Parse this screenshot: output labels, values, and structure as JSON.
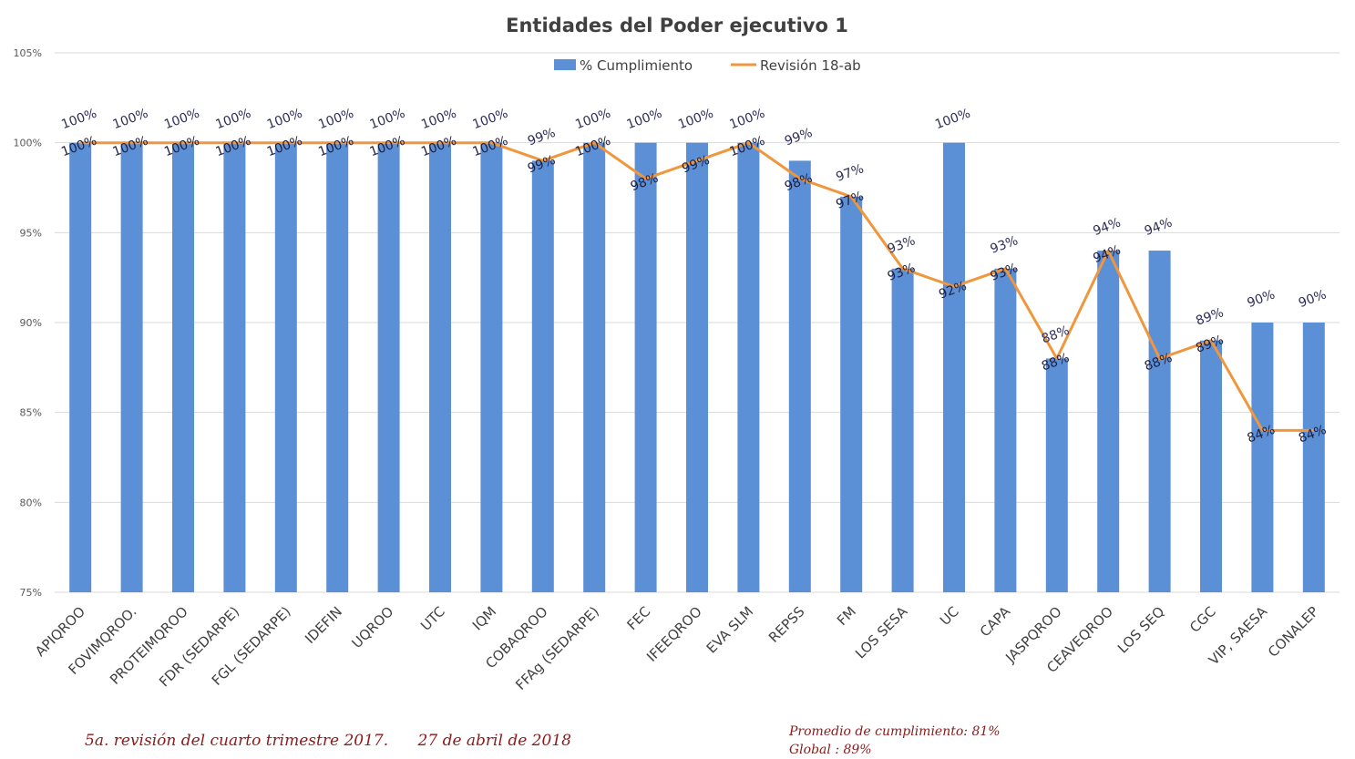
{
  "chart_data": {
    "type": "bar",
    "title": "Entidades del Poder ejecutivo 1",
    "categories": [
      "APIQROO",
      "FOVIMQROO.",
      "PROTEIMQROO",
      "FDR (SEDARPE)",
      "FGL (SEDARPE)",
      "IDEFIN",
      "UQROO",
      "UTC",
      "IQM",
      "COBAQROO",
      "FFAg (SEDARPE)",
      "FEC",
      "IFEEQROO",
      "EVA SLM",
      "REPSS",
      "FM",
      "LOS SESA",
      "UC",
      "CAPA",
      "JASPQROO",
      "CEAVEQROO",
      "LOS SEQ",
      "CGC",
      "VIP, SAESA",
      "CONALEP"
    ],
    "series": [
      {
        "name": "% Cumplimiento",
        "kind": "bar",
        "color": "#5b8fd6",
        "values": [
          100,
          100,
          100,
          100,
          100,
          100,
          100,
          100,
          100,
          99,
          100,
          100,
          100,
          100,
          99,
          97,
          93,
          100,
          93,
          88,
          94,
          94,
          89,
          90,
          90
        ],
        "labels": [
          "100%",
          "100%",
          "100%",
          "100%",
          "100%",
          "100%",
          "100%",
          "100%",
          "100%",
          "99%",
          "100%",
          "100%",
          "100%",
          "100%",
          "99%",
          "97%",
          "93%",
          "100%",
          "93%",
          "88%",
          "94%",
          "94%",
          "89%",
          "90%",
          "90%"
        ]
      },
      {
        "name": "Revisión  18-ab",
        "kind": "line",
        "color": "#f0963c",
        "values": [
          100,
          100,
          100,
          100,
          100,
          100,
          100,
          100,
          100,
          99,
          100,
          98,
          99,
          100,
          98,
          97,
          93,
          92,
          93,
          88,
          94,
          88,
          89,
          84,
          84
        ],
        "labels": [
          "100%",
          "100%",
          "100%",
          "100%",
          "100%",
          "100%",
          "100%",
          "100%",
          "100%",
          "99%",
          "100%",
          "98%",
          "99%",
          "100%",
          "98%",
          "97%",
          "93%",
          "92%",
          "93%",
          "88%",
          "94%",
          "88%",
          "89%",
          "84%",
          "84%"
        ]
      }
    ],
    "ylim": [
      75,
      105
    ],
    "yticks": [
      75,
      80,
      85,
      90,
      95,
      100,
      105
    ],
    "ytick_labels": [
      "75%",
      "80%",
      "85%",
      "90%",
      "95%",
      "100%",
      "105%"
    ],
    "grid": true,
    "legend_position": "top-center"
  },
  "notes": {
    "left": "5a. revisión del cuarto trimestre 2017.      27 de abril de 2018",
    "right_line1": "Promedio de cumplimiento: 81%",
    "right_line2": "Global : 89%"
  }
}
